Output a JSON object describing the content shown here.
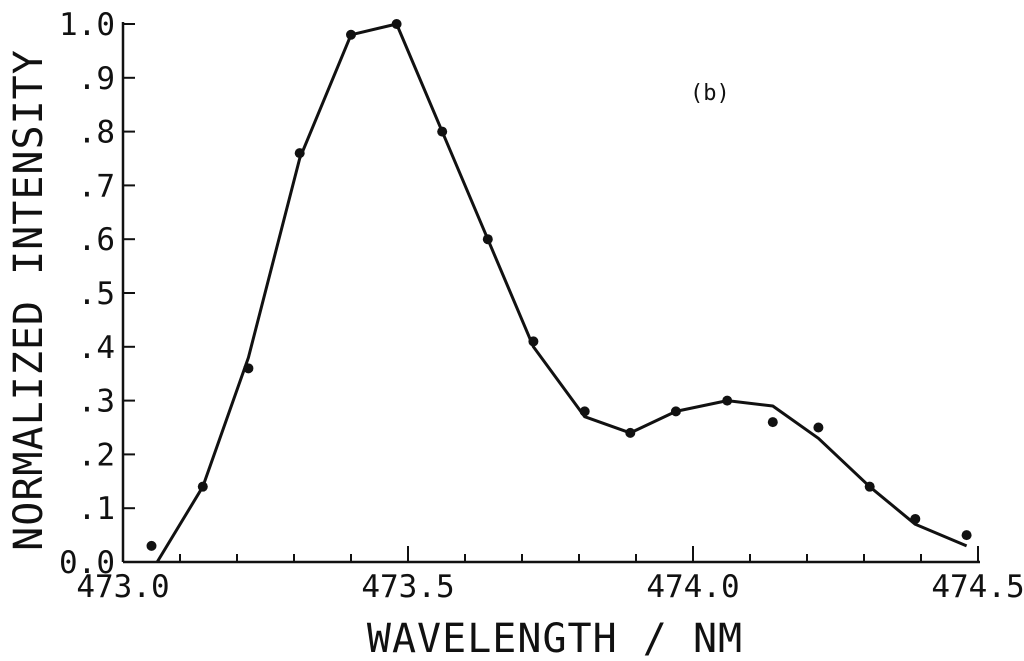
{
  "chart_data": {
    "type": "line",
    "title": "",
    "panel_label": "(b)",
    "xlabel": "WAVELENGTH / NM",
    "ylabel": "NORMALIZED INTENSITY",
    "xlim": [
      473.0,
      474.5
    ],
    "ylim": [
      0.0,
      1.0
    ],
    "grid": false,
    "legend": "none",
    "x_ticks": [
      473.0,
      473.5,
      474.0,
      474.5
    ],
    "x_tick_labels": [
      "473.0",
      "473.5",
      "474.0",
      "474.5"
    ],
    "y_ticks": [
      0.0,
      0.1,
      0.2,
      0.3,
      0.4,
      0.5,
      0.6,
      0.7,
      0.8,
      0.9,
      1.0
    ],
    "y_tick_labels": [
      "0.0",
      ".1",
      ".2",
      ".3",
      ".4",
      ".5",
      ".6",
      ".7",
      ".8",
      ".9",
      "1.0"
    ],
    "series": [
      {
        "style": "markers",
        "x": [
          473.05,
          473.14,
          473.22,
          473.31,
          473.4,
          473.48,
          473.56,
          473.64,
          473.72,
          473.81,
          473.89,
          473.97,
          474.06,
          474.14,
          474.22,
          474.31,
          474.39,
          474.48
        ],
        "y": [
          0.03,
          0.14,
          0.36,
          0.76,
          0.98,
          1.0,
          0.8,
          0.6,
          0.41,
          0.28,
          0.24,
          0.28,
          0.3,
          0.26,
          0.25,
          0.14,
          0.08,
          0.05
        ]
      },
      {
        "style": "line",
        "x": [
          473.06,
          473.14,
          473.22,
          473.31,
          473.4,
          473.48,
          473.56,
          473.64,
          473.72,
          473.81,
          473.89,
          473.97,
          474.06,
          474.14,
          474.22,
          474.31,
          474.39,
          474.48
        ],
        "y": [
          0.0,
          0.14,
          0.38,
          0.75,
          0.98,
          1.0,
          0.8,
          0.6,
          0.4,
          0.27,
          0.24,
          0.28,
          0.3,
          0.29,
          0.23,
          0.14,
          0.07,
          0.03
        ]
      }
    ]
  }
}
